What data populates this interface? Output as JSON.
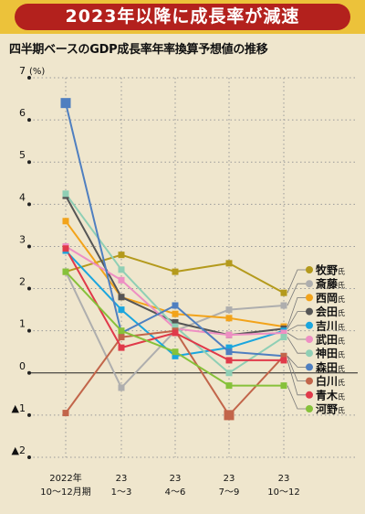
{
  "title": "2023年以降に成長率が減速",
  "subtitle": "四半期ベースのGDP成長率年率換算予想値の推移",
  "chart_data": {
    "type": "line",
    "yunit": "(%)",
    "ylim": [
      -2,
      7
    ],
    "yticks": [
      {
        "v": 7,
        "label": "7"
      },
      {
        "v": 6,
        "label": "6"
      },
      {
        "v": 5,
        "label": "5"
      },
      {
        "v": 4,
        "label": "4"
      },
      {
        "v": 3,
        "label": "3"
      },
      {
        "v": 2,
        "label": "2"
      },
      {
        "v": 1,
        "label": "1"
      },
      {
        "v": 0,
        "label": "0"
      },
      {
        "v": -1,
        "label": "▲1"
      },
      {
        "v": -2,
        "label": "▲2"
      }
    ],
    "categories": [
      {
        "top": "2022年",
        "bottom": "10〜12月期"
      },
      {
        "top": "23",
        "bottom": "1〜3"
      },
      {
        "top": "23",
        "bottom": "4〜6"
      },
      {
        "top": "23",
        "bottom": "7〜9"
      },
      {
        "top": "23",
        "bottom": "10〜12"
      }
    ],
    "series": [
      {
        "name": "牧野",
        "suffix": "氏",
        "color": "#b49a1c",
        "values": [
          2.4,
          2.8,
          2.4,
          2.6,
          1.9
        ]
      },
      {
        "name": "斎藤",
        "suffix": "氏",
        "color": "#aeaeae",
        "values": [
          2.4,
          -0.35,
          1.0,
          1.5,
          1.6
        ]
      },
      {
        "name": "西岡",
        "suffix": "氏",
        "color": "#f2a31a",
        "values": [
          3.6,
          1.8,
          1.4,
          1.3,
          1.1
        ]
      },
      {
        "name": "会田",
        "suffix": "氏",
        "color": "#555555",
        "values": [
          4.2,
          1.8,
          1.2,
          0.9,
          1.05
        ]
      },
      {
        "name": "吉川",
        "suffix": "氏",
        "color": "#1aa6de",
        "values": [
          2.9,
          1.5,
          0.4,
          0.6,
          1.0
        ]
      },
      {
        "name": "武田",
        "suffix": "氏",
        "color": "#ee8fc3",
        "values": [
          3.0,
          2.2,
          1.05,
          0.9,
          0.95
        ]
      },
      {
        "name": "神田",
        "suffix": "氏",
        "color": "#8fcfb5",
        "values": [
          4.25,
          2.45,
          1.1,
          0.0,
          0.85
        ]
      },
      {
        "name": "森田",
        "suffix": "氏",
        "color": "#4f7fc0",
        "values": [
          6.4,
          0.95,
          1.6,
          0.5,
          0.4
        ]
      },
      {
        "name": "白川",
        "suffix": "氏",
        "color": "#c2654a",
        "values": [
          -0.95,
          0.85,
          1.0,
          -1.0,
          0.4
        ]
      },
      {
        "name": "青木",
        "suffix": "氏",
        "color": "#e03a4a",
        "values": [
          2.95,
          0.6,
          0.95,
          0.3,
          0.3
        ]
      },
      {
        "name": "河野",
        "suffix": "氏",
        "color": "#86c13a",
        "values": [
          2.4,
          1.0,
          0.5,
          -0.3,
          -0.3
        ]
      }
    ]
  }
}
